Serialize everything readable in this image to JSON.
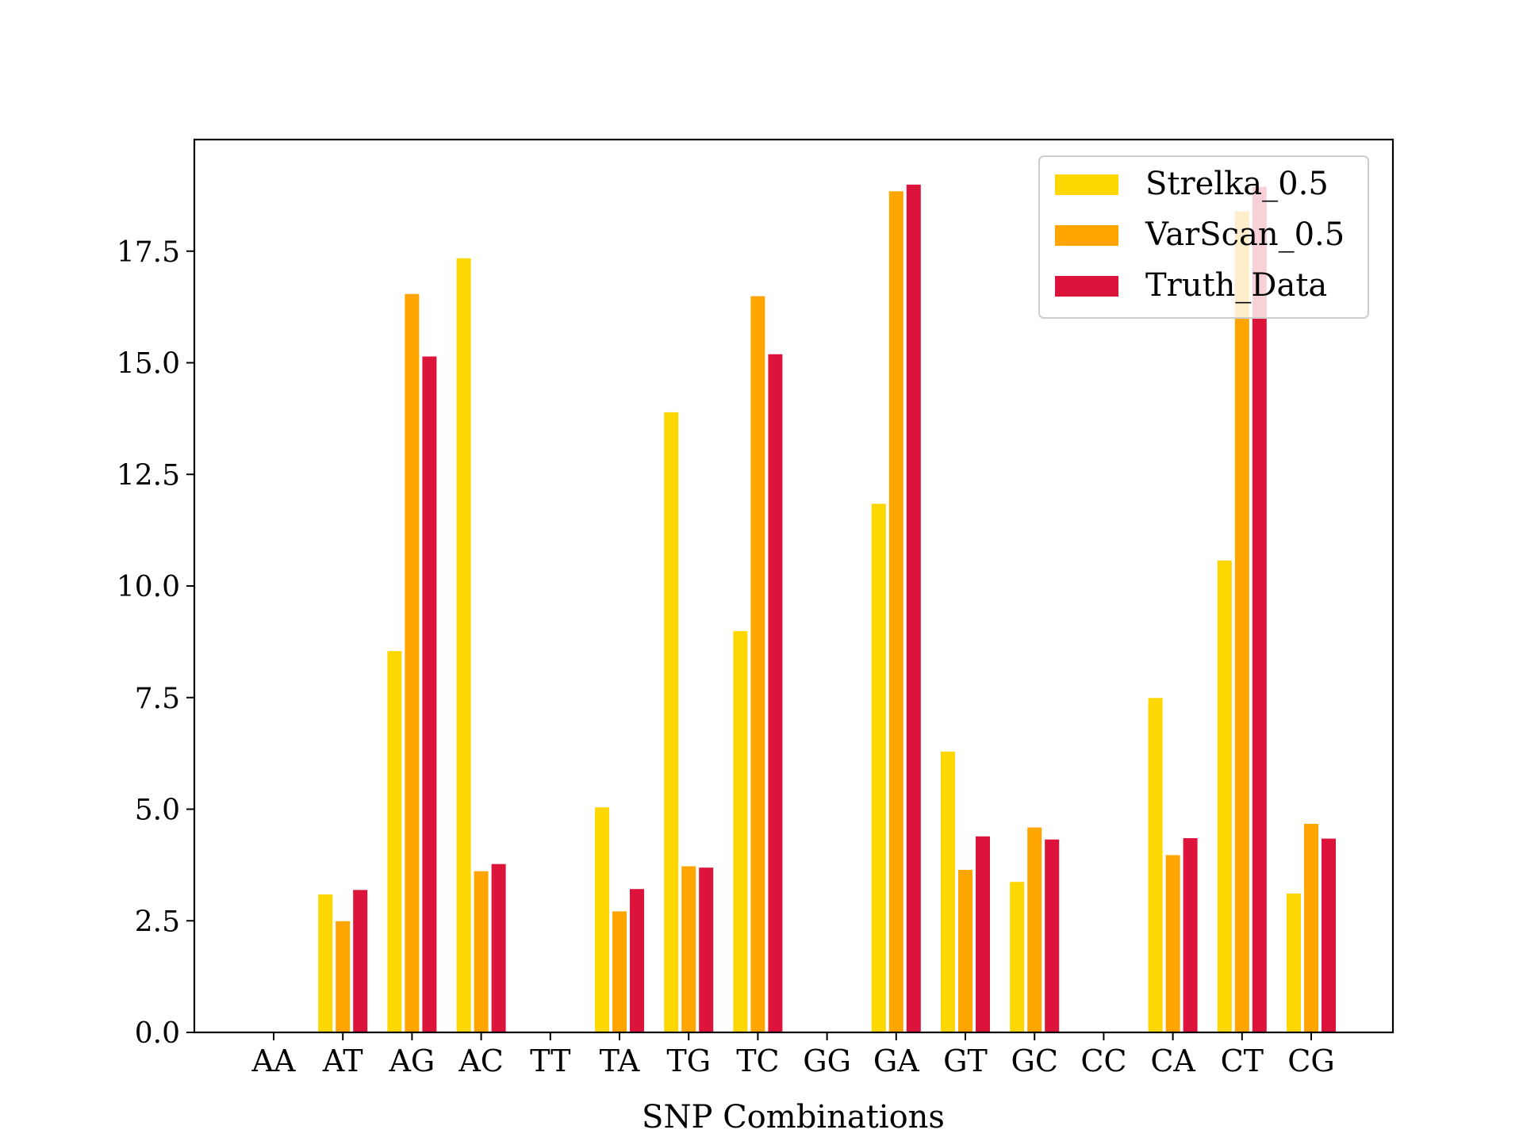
{
  "chart_data": {
    "type": "bar",
    "title": "",
    "xlabel": "SNP Combinations",
    "ylabel": "",
    "categories": [
      "AA",
      "AT",
      "AG",
      "AC",
      "TT",
      "TA",
      "TG",
      "TC",
      "GG",
      "GA",
      "GT",
      "GC",
      "CC",
      "CA",
      "CT",
      "CG"
    ],
    "ylim": [
      0,
      20
    ],
    "yticks": [
      "0.0",
      "2.5",
      "5.0",
      "7.5",
      "10.0",
      "12.5",
      "15.0",
      "17.5"
    ],
    "grid": false,
    "legend_position": "top-right",
    "series": [
      {
        "name": "Strelka_0.5",
        "color": "#FFD700",
        "values": [
          0,
          3.1,
          8.55,
          17.35,
          0,
          5.05,
          13.9,
          9.0,
          0,
          11.85,
          6.3,
          3.38,
          0,
          7.5,
          10.58,
          3.12
        ]
      },
      {
        "name": "VarScan_0.5",
        "color": "#FFA500",
        "values": [
          0,
          2.5,
          16.55,
          3.62,
          0,
          2.72,
          3.73,
          16.5,
          0,
          18.85,
          3.65,
          4.6,
          0,
          3.98,
          18.4,
          4.68
        ]
      },
      {
        "name": "Truth_Data",
        "color": "#DC143C",
        "values": [
          0,
          3.2,
          15.15,
          3.78,
          0,
          3.22,
          3.7,
          15.2,
          0,
          19.0,
          4.4,
          4.33,
          0,
          4.36,
          18.95,
          4.35
        ]
      }
    ]
  }
}
